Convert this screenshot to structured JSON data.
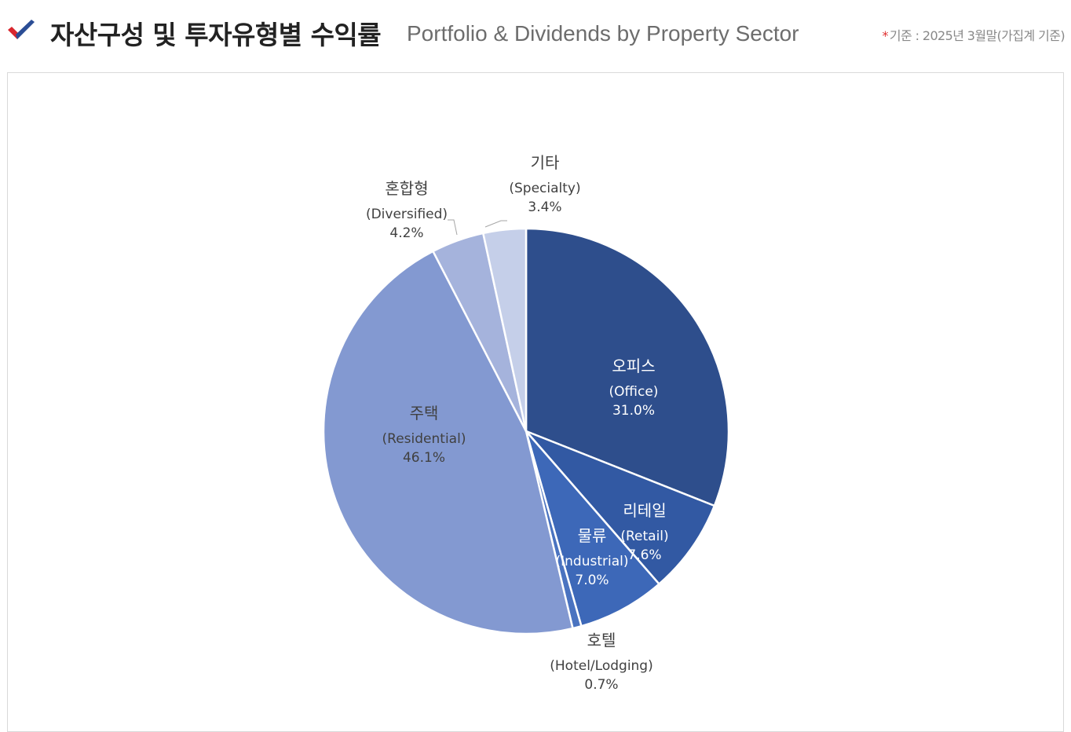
{
  "header": {
    "title_ko": "자산구성 및 투자유형별 수익률",
    "title_en": "Portfolio & Dividends by Property Sector",
    "basis_marker": "*",
    "basis_note": "기준 : 2025년 3월말(가집계 기준)",
    "check_icon": "checkmark-icon"
  },
  "colors": {
    "check_red": "#d9262e",
    "check_blue": "#2b4d95",
    "label_dark": "#595959",
    "label_light": "#ffffff"
  },
  "chart_data": {
    "type": "pie",
    "start_angle_deg": 0,
    "direction": "clockwise",
    "slices": [
      {
        "name_ko": "오피스",
        "name_en": "(Office)",
        "value": 31.0,
        "value_label": "31.0%",
        "color": "#2e4e8c",
        "label_color": "#ffffff"
      },
      {
        "name_ko": "리테일",
        "name_en": "(Retail)",
        "value": 7.6,
        "value_label": "7.6%",
        "color": "#3259a3",
        "label_color": "#ffffff"
      },
      {
        "name_ko": "물류",
        "name_en": "(Industrial)",
        "value": 7.0,
        "value_label": "7.0%",
        "color": "#3d68b8",
        "label_color": "#ffffff"
      },
      {
        "name_ko": "호텔",
        "name_en": "(Hotel/Lodging)",
        "value": 0.7,
        "value_label": "0.7%",
        "color": "#4a73c0",
        "label_color": "#404040"
      },
      {
        "name_ko": "주택",
        "name_en": "(Residential)",
        "value": 46.1,
        "value_label": "46.1%",
        "color": "#8399d1",
        "label_color": "#404040"
      },
      {
        "name_ko": "혼합형",
        "name_en": "(Diversified)",
        "value": 4.2,
        "value_label": "4.2%",
        "color": "#a5b3dc",
        "label_color": "#404040"
      },
      {
        "name_ko": "기타",
        "name_en": "(Specialty)",
        "value": 3.4,
        "value_label": "3.4%",
        "color": "#c5cfe9",
        "label_color": "#404040"
      }
    ]
  }
}
